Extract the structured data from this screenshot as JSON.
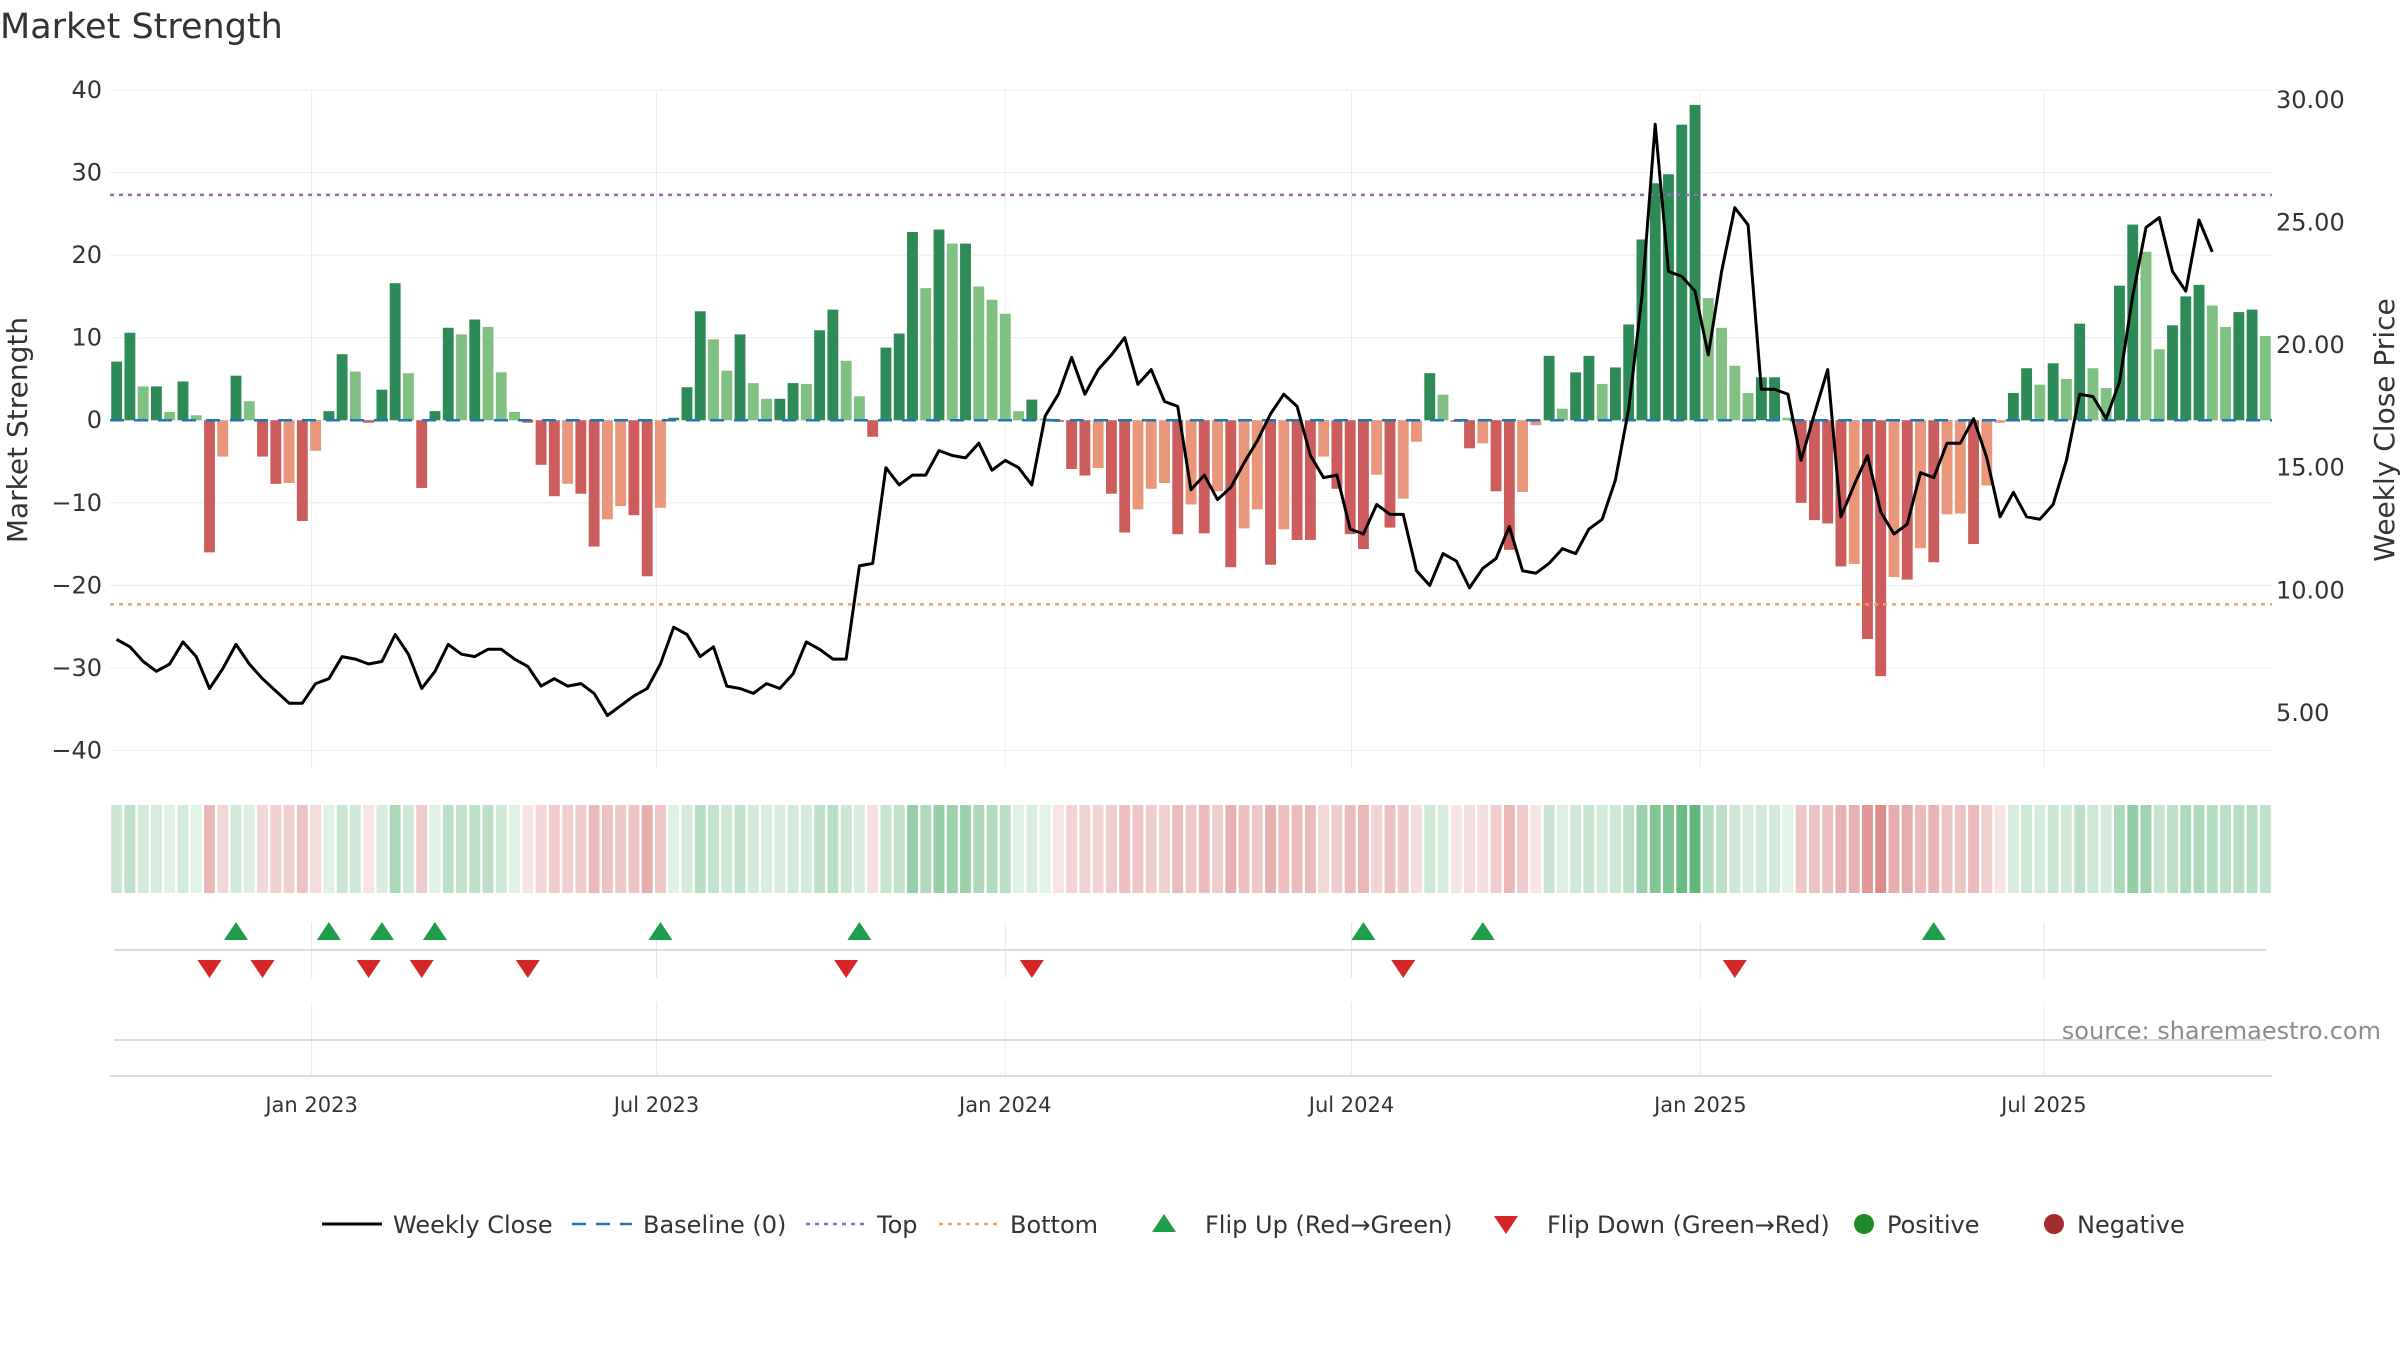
{
  "chart_data": {
    "type": "bar",
    "title": "Market Strength",
    "ylabel": "Market Strength",
    "y2label": "Weekly Close Price",
    "ylim": [
      -42,
      40
    ],
    "y2lim": [
      2.8,
      30.4
    ],
    "yticks": [
      40,
      30,
      20,
      10,
      0,
      -10,
      -20,
      -30,
      -40
    ],
    "yticks_labels": [
      "40",
      "30",
      "20",
      "10",
      "0",
      "−10",
      "−20",
      "−30",
      "−40"
    ],
    "y2ticks": [
      30,
      25,
      20,
      15,
      10,
      5
    ],
    "y2ticks_labels": [
      "30.00",
      "25.00",
      "20.00",
      "15.00",
      "10.00",
      "5.00"
    ],
    "top_level": 27.3,
    "bottom_level": -22.3,
    "xticks_labels": [
      "Jan 2023",
      "Jul 2023",
      "Jan 2024",
      "Jul 2024",
      "Jan 2025",
      "Jul 2025"
    ],
    "xticks_weeks": [
      14.7,
      40.7,
      67,
      93.1,
      119.4,
      145.3
    ],
    "strength": [
      7.1,
      10.6,
      4.1,
      4.1,
      1.0,
      4.7,
      0.6,
      -16,
      -4.4,
      5.4,
      2.3,
      -4.4,
      -7.7,
      -7.6,
      -12.2,
      -3.7,
      1.1,
      8.0,
      5.9,
      -0.3,
      3.7,
      16.6,
      5.7,
      -8.2,
      1.1,
      11.2,
      10.4,
      12.2,
      11.3,
      5.8,
      1.0,
      -0.3,
      -5.4,
      -9.2,
      -7.7,
      -8.9,
      -15.3,
      -12.0,
      -10.4,
      -11.5,
      -18.9,
      -10.6,
      0.3,
      4.0,
      13.2,
      9.8,
      6.0,
      10.4,
      4.5,
      2.6,
      2.6,
      4.5,
      4.4,
      10.9,
      13.4,
      7.2,
      2.9,
      -2.0,
      8.8,
      10.5,
      22.8,
      16.0,
      23.1,
      21.4,
      21.4,
      16.2,
      14.6,
      12.9,
      1.1,
      2.5,
      0.2,
      -0.2,
      -5.9,
      -6.7,
      -5.8,
      -8.9,
      -13.6,
      -10.8,
      -8.3,
      -7.6,
      -13.8,
      -10.2,
      -13.7,
      -8.6,
      -17.8,
      -13.1,
      -10.8,
      -17.5,
      -13.2,
      -14.5,
      -14.5,
      -4.4,
      -8.3,
      -13.8,
      -15.6,
      -6.6,
      -13.0,
      -9.5,
      -2.6,
      5.7,
      3.1,
      -0.2,
      -3.4,
      -2.8,
      -8.6,
      -15.7,
      -8.7,
      -0.6,
      7.8,
      1.4,
      5.8,
      7.8,
      4.4,
      6.4,
      11.6,
      21.9,
      28.7,
      29.8,
      35.8,
      38.2,
      14.8,
      11.2,
      6.6,
      3.3,
      5.2,
      5.2,
      0.3,
      -10.0,
      -12.1,
      -12.5,
      -17.7,
      -17.4,
      -26.5,
      -31.0,
      -19.0,
      -19.3,
      -15.5,
      -17.2,
      -11.4,
      -11.3,
      -15.0,
      -7.9,
      -0.3,
      3.3,
      6.3,
      4.3,
      6.9,
      5.0,
      11.7,
      6.3,
      3.9,
      16.3,
      23.7,
      20.4,
      8.6,
      11.5,
      15.0,
      16.4,
      13.9,
      11.3,
      13.1,
      13.4,
      10.2
    ],
    "weekly_close": [
      8.0,
      7.7,
      7.1,
      6.7,
      7.0,
      7.9,
      7.3,
      6.0,
      6.8,
      7.8,
      7.0,
      6.4,
      5.9,
      5.4,
      5.4,
      6.2,
      6.4,
      7.3,
      7.2,
      7.0,
      7.1,
      8.2,
      7.4,
      6.0,
      6.7,
      7.8,
      7.4,
      7.3,
      7.6,
      7.6,
      7.2,
      6.9,
      6.1,
      6.4,
      6.1,
      6.2,
      5.8,
      4.9,
      5.3,
      5.7,
      6.0,
      7.0,
      8.5,
      8.2,
      7.3,
      7.7,
      6.1,
      6.0,
      5.8,
      6.2,
      6.0,
      6.6,
      7.9,
      7.6,
      7.2,
      7.2,
      11.0,
      11.1,
      15.0,
      14.3,
      14.7,
      14.7,
      15.7,
      15.5,
      15.4,
      16.0,
      14.9,
      15.3,
      15.0,
      14.3,
      17.1,
      18.0,
      19.5,
      18.0,
      19.0,
      19.6,
      20.3,
      18.4,
      19.0,
      17.7,
      17.5,
      14.1,
      14.7,
      13.7,
      14.2,
      15.2,
      16.1,
      17.2,
      18.0,
      17.5,
      15.5,
      14.6,
      14.7,
      12.5,
      12.3,
      13.5,
      13.1,
      13.1,
      10.8,
      10.2,
      11.5,
      11.2,
      10.1,
      10.9,
      11.3,
      12.6,
      10.8,
      10.7,
      11.1,
      11.7,
      11.5,
      12.5,
      12.9,
      14.5,
      17.4,
      22.0,
      29.0,
      23.0,
      22.8,
      22.2,
      19.6,
      23.0,
      25.6,
      24.9,
      18.2,
      18.2,
      18.0,
      15.3,
      17.2,
      19.0,
      13.0,
      14.3,
      15.5,
      13.2,
      12.3,
      12.7,
      14.8,
      14.6,
      16.0,
      16.0,
      17.0,
      15.4,
      13.0,
      14.0,
      13.0,
      12.9,
      13.5,
      15.3,
      18.0,
      17.9,
      17.0,
      18.5,
      22.0,
      24.8,
      25.2,
      23.0,
      22.2,
      25.1,
      23.8
    ],
    "flip_up_weeks": [
      9,
      16,
      20,
      24,
      41,
      56,
      94,
      103,
      137
    ],
    "flip_down_weeks": [
      7,
      11,
      19,
      23,
      31,
      55,
      69,
      97,
      122
    ],
    "legend": [
      {
        "label": "Weekly Close",
        "kind": "line-solid",
        "color": "#000000"
      },
      {
        "label": "Baseline (0)",
        "kind": "line-dash",
        "color": "#1f77b4"
      },
      {
        "label": "Top",
        "kind": "line-dot",
        "color": "#9467bd"
      },
      {
        "label": "Bottom",
        "kind": "line-dot",
        "color": "#f5a05a"
      },
      {
        "label": "Flip Up (Red→Green)",
        "kind": "triangle-up",
        "color": "#1e9e4a"
      },
      {
        "label": "Flip Down (Green→Red)",
        "kind": "triangle-down",
        "color": "#d62728"
      },
      {
        "label": "Positive",
        "kind": "dot",
        "color": "#1e8c2a"
      },
      {
        "label": "Negative",
        "kind": "dot",
        "color": "#a52a2a"
      }
    ],
    "source": "source: sharemaestro.com"
  },
  "colors": {
    "pos_strong": "#2e8b57",
    "pos_weak": "#80c080",
    "neg_strong": "#cd5c5c",
    "neg_weak": "#e9967a",
    "top_line": "#9467bd",
    "bottom_line": "#f5a05a",
    "baseline": "#1f77b4",
    "flip_up": "#1e9e4a",
    "flip_down": "#d62728",
    "price_line": "#000000"
  }
}
